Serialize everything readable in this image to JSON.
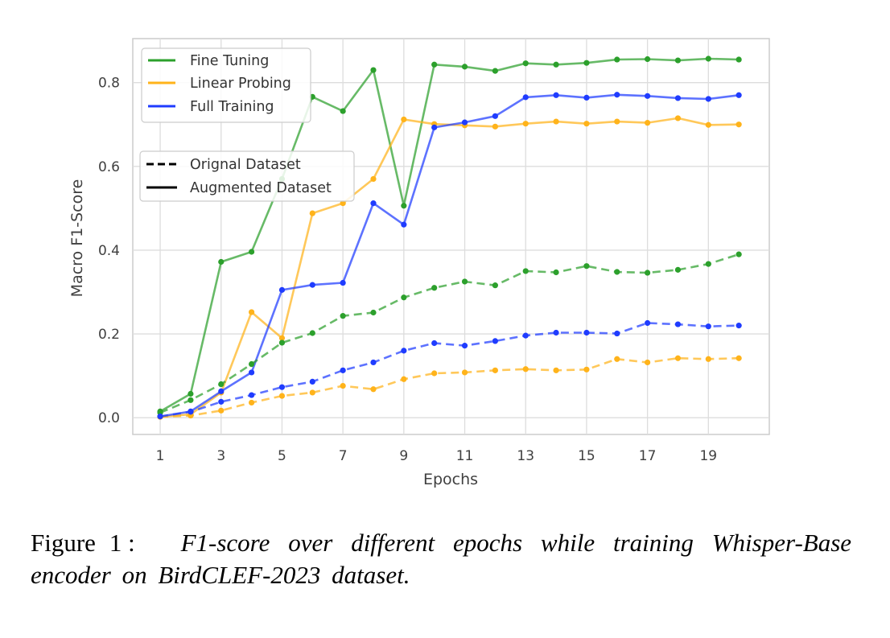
{
  "chart_data": {
    "type": "line",
    "xlabel": "Epochs",
    "ylabel": "Macro F1-Score",
    "x": [
      1,
      2,
      3,
      4,
      5,
      6,
      7,
      8,
      9,
      10,
      11,
      12,
      13,
      14,
      15,
      16,
      17,
      18,
      19,
      20
    ],
    "xticks": [
      1,
      3,
      5,
      7,
      9,
      11,
      13,
      15,
      17,
      19
    ],
    "yticks": [
      0.0,
      0.2,
      0.4,
      0.6,
      0.8
    ],
    "xlim": [
      0.1,
      21.0
    ],
    "ylim": [
      -0.04,
      0.905
    ],
    "grid": true,
    "series": [
      {
        "name": "Fine Tuning",
        "dataset": "Augmented Dataset",
        "color": "#2ca02c",
        "linestyle": "solid",
        "values": [
          0.015,
          0.057,
          0.372,
          0.396,
          0.57,
          0.766,
          0.732,
          0.83,
          0.506,
          0.843,
          0.838,
          0.828,
          0.846,
          0.843,
          0.847,
          0.855,
          0.856,
          0.853,
          0.857,
          0.855
        ]
      },
      {
        "name": "Linear Probing",
        "dataset": "Augmented Dataset",
        "color": "#ffb31a",
        "linestyle": "solid",
        "values": [
          0.002,
          0.008,
          0.06,
          0.252,
          0.19,
          0.488,
          0.512,
          0.57,
          0.712,
          0.701,
          0.698,
          0.695,
          0.702,
          0.707,
          0.702,
          0.707,
          0.704,
          0.715,
          0.699,
          0.7
        ]
      },
      {
        "name": "Full Training",
        "dataset": "Augmented Dataset",
        "color": "#1f3cff",
        "linestyle": "solid",
        "values": [
          0.003,
          0.015,
          0.063,
          0.108,
          0.305,
          0.317,
          0.322,
          0.512,
          0.461,
          0.693,
          0.705,
          0.72,
          0.765,
          0.77,
          0.764,
          0.771,
          0.768,
          0.763,
          0.761,
          0.77
        ]
      },
      {
        "name": "Fine Tuning",
        "dataset": "Orignal Dataset",
        "color": "#2ca02c",
        "linestyle": "dashed",
        "values": [
          0.012,
          0.042,
          0.08,
          0.128,
          0.179,
          0.202,
          0.243,
          0.251,
          0.287,
          0.31,
          0.325,
          0.316,
          0.35,
          0.347,
          0.362,
          0.348,
          0.346,
          0.353,
          0.367,
          0.39
        ]
      },
      {
        "name": "Linear Probing",
        "dataset": "Orignal Dataset",
        "color": "#ffb31a",
        "linestyle": "dashed",
        "values": [
          0.002,
          0.005,
          0.017,
          0.036,
          0.052,
          0.06,
          0.076,
          0.068,
          0.092,
          0.106,
          0.108,
          0.113,
          0.116,
          0.113,
          0.115,
          0.14,
          0.132,
          0.142,
          0.14,
          0.142
        ]
      },
      {
        "name": "Full Training",
        "dataset": "Orignal Dataset",
        "color": "#1f3cff",
        "linestyle": "dashed",
        "values": [
          0.003,
          0.014,
          0.038,
          0.054,
          0.073,
          0.086,
          0.113,
          0.132,
          0.16,
          0.178,
          0.172,
          0.183,
          0.196,
          0.203,
          0.203,
          0.201,
          0.226,
          0.223,
          0.218,
          0.22
        ]
      }
    ],
    "legend_methods": {
      "placement": "top-left",
      "entries": [
        {
          "label": "Fine Tuning",
          "color": "#2ca02c"
        },
        {
          "label": "Linear Probing",
          "color": "#ffb31a"
        },
        {
          "label": "Full Training",
          "color": "#1f3cff"
        }
      ]
    },
    "legend_datasets": {
      "placement": "upper-left",
      "entries": [
        {
          "label": "Orignal Dataset",
          "linestyle": "dashed"
        },
        {
          "label": "Augmented Dataset",
          "linestyle": "solid"
        }
      ]
    }
  },
  "caption": {
    "label": "Figure",
    "number": "1 :",
    "text": "F1-score over different epochs while training Whisper-Base encoder on BirdCLEF-2023 dataset."
  }
}
